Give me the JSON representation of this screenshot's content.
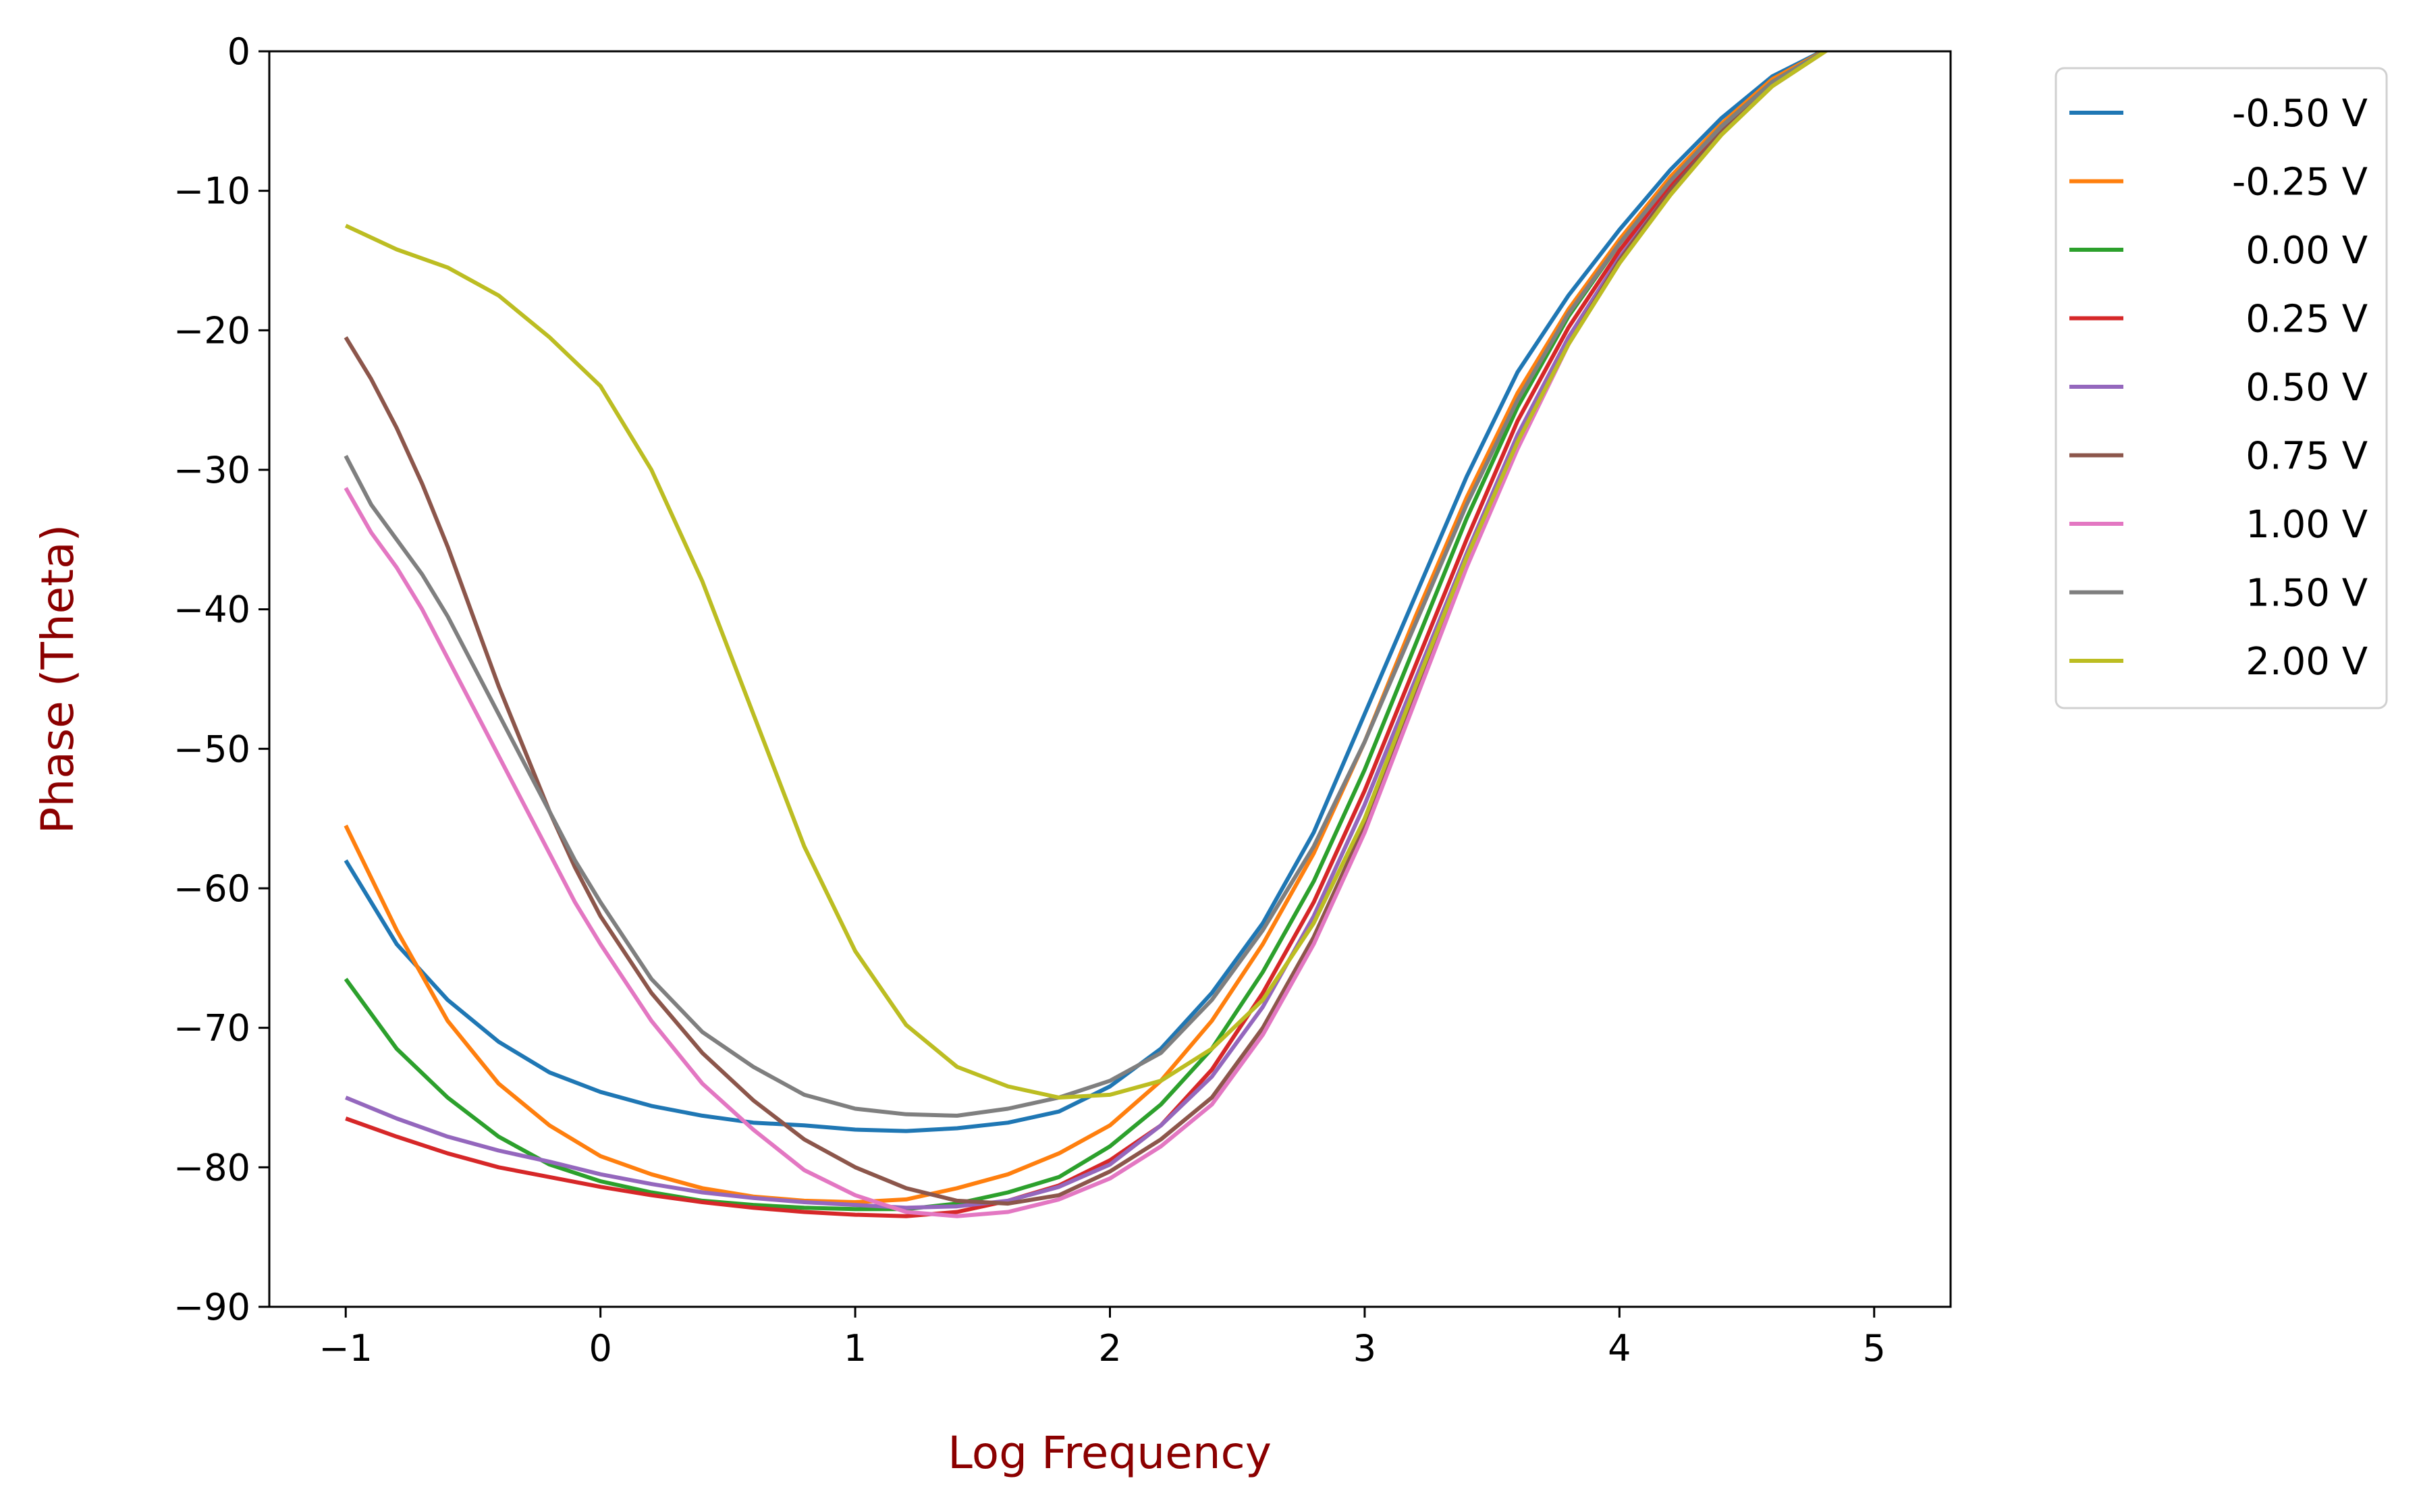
{
  "chart_data": {
    "type": "line",
    "title": "",
    "xlabel": "Log Frequency",
    "ylabel": "Phase (Theta)",
    "axis_label_color": "#8b0000",
    "xlim": [
      -1.3,
      5.3
    ],
    "ylim": [
      -90,
      0
    ],
    "xticks": [
      -1,
      0,
      1,
      2,
      3,
      4,
      5
    ],
    "xtick_labels": [
      "−1",
      "0",
      "1",
      "2",
      "3",
      "4",
      "5"
    ],
    "yticks": [
      0,
      -10,
      -20,
      -30,
      -40,
      -50,
      -60,
      -70,
      -80,
      -90
    ],
    "ytick_labels": [
      "0",
      "−10",
      "−20",
      "−30",
      "−40",
      "−50",
      "−60",
      "−70",
      "−80",
      "−90"
    ],
    "grid": false,
    "legend_position": "outside-upper-right",
    "series": [
      {
        "name": "-0.50 V",
        "color": "#1f77b4",
        "x": [
          -1,
          -0.8,
          -0.6,
          -0.4,
          -0.2,
          0,
          0.2,
          0.4,
          0.6,
          0.8,
          1.0,
          1.2,
          1.4,
          1.6,
          1.8,
          2.0,
          2.2,
          2.4,
          2.6,
          2.8,
          3.0,
          3.2,
          3.4,
          3.6,
          3.8,
          4.0,
          4.2,
          4.4,
          4.6,
          4.85
        ],
        "y": [
          -58,
          -64,
          -68,
          -71,
          -73.2,
          -74.6,
          -75.6,
          -76.3,
          -76.8,
          -77.0,
          -77.3,
          -77.4,
          -77.2,
          -76.8,
          -76.0,
          -74.2,
          -71.5,
          -67.5,
          -62.5,
          -56,
          -47.5,
          -39,
          -30.5,
          -23,
          -17.5,
          -12.8,
          -8.5,
          -4.8,
          -1.8,
          0.5
        ]
      },
      {
        "name": "-0.25 V",
        "color": "#ff7f0e",
        "x": [
          -1,
          -0.8,
          -0.6,
          -0.4,
          -0.2,
          0,
          0.2,
          0.4,
          0.6,
          0.8,
          1.0,
          1.2,
          1.4,
          1.6,
          1.8,
          2.0,
          2.2,
          2.4,
          2.6,
          2.8,
          3.0,
          3.2,
          3.4,
          3.6,
          3.8,
          4.0,
          4.2,
          4.4,
          4.6,
          4.85
        ],
        "y": [
          -55.5,
          -63,
          -69.5,
          -74,
          -77,
          -79.2,
          -80.5,
          -81.5,
          -82.1,
          -82.4,
          -82.5,
          -82.3,
          -81.5,
          -80.5,
          -79,
          -77,
          -73.8,
          -69.5,
          -64,
          -57.5,
          -49.5,
          -40.5,
          -32,
          -24.5,
          -18.5,
          -13.5,
          -9,
          -5.2,
          -2,
          0.5
        ]
      },
      {
        "name": "0.00 V",
        "color": "#2ca02c",
        "x": [
          -1,
          -0.8,
          -0.6,
          -0.4,
          -0.2,
          0,
          0.2,
          0.4,
          0.6,
          0.8,
          1.0,
          1.2,
          1.4,
          1.6,
          1.8,
          2.0,
          2.2,
          2.4,
          2.6,
          2.8,
          3.0,
          3.2,
          3.4,
          3.6,
          3.8,
          4.0,
          4.2,
          4.4,
          4.6,
          4.85
        ],
        "y": [
          -66.5,
          -71.5,
          -75,
          -77.8,
          -79.8,
          -81,
          -81.8,
          -82.4,
          -82.7,
          -82.9,
          -83,
          -83,
          -82.6,
          -81.8,
          -80.7,
          -78.5,
          -75.5,
          -71.5,
          -66,
          -59.5,
          -51.5,
          -42.5,
          -33.5,
          -25.5,
          -19,
          -13.8,
          -9.3,
          -5.4,
          -2.2,
          0.5
        ]
      },
      {
        "name": "0.25 V",
        "color": "#d62728",
        "x": [
          -1,
          -0.8,
          -0.6,
          -0.4,
          -0.2,
          0,
          0.2,
          0.4,
          0.6,
          0.8,
          1.0,
          1.2,
          1.4,
          1.6,
          1.8,
          2.0,
          2.2,
          2.4,
          2.6,
          2.8,
          3.0,
          3.2,
          3.4,
          3.6,
          3.8,
          4.0,
          4.2,
          4.4,
          4.6,
          4.85
        ],
        "y": [
          -76.5,
          -77.8,
          -79,
          -80,
          -80.7,
          -81.4,
          -82,
          -82.5,
          -82.9,
          -83.2,
          -83.4,
          -83.5,
          -83.2,
          -82.4,
          -81.3,
          -79.5,
          -77,
          -73,
          -67.5,
          -61,
          -53,
          -44,
          -35,
          -26.5,
          -19.8,
          -14.3,
          -9.6,
          -5.6,
          -2.3,
          0.5
        ]
      },
      {
        "name": "0.50 V",
        "color": "#9467bd",
        "x": [
          -1,
          -0.8,
          -0.6,
          -0.4,
          -0.2,
          0,
          0.2,
          0.4,
          0.6,
          0.8,
          1.0,
          1.2,
          1.4,
          1.6,
          1.8,
          2.0,
          2.2,
          2.4,
          2.6,
          2.8,
          3.0,
          3.2,
          3.4,
          3.6,
          3.8,
          4.0,
          4.2,
          4.4,
          4.6,
          4.85
        ],
        "y": [
          -75,
          -76.5,
          -77.8,
          -78.8,
          -79.6,
          -80.5,
          -81.2,
          -81.8,
          -82.2,
          -82.5,
          -82.7,
          -82.9,
          -82.8,
          -82.4,
          -81.4,
          -79.8,
          -77,
          -73.5,
          -68.5,
          -62,
          -54,
          -45,
          -36,
          -27.5,
          -20.5,
          -14.8,
          -10,
          -5.8,
          -2.4,
          0.5
        ]
      },
      {
        "name": "0.75 V",
        "color": "#8c564b",
        "x": [
          -1,
          -0.9,
          -0.8,
          -0.7,
          -0.6,
          -0.5,
          -0.4,
          -0.3,
          -0.2,
          -0.1,
          0,
          0.2,
          0.4,
          0.6,
          0.8,
          1.0,
          1.2,
          1.4,
          1.6,
          1.8,
          2.0,
          2.2,
          2.4,
          2.6,
          2.8,
          3.0,
          3.2,
          3.4,
          3.6,
          3.8,
          4.0,
          4.2,
          4.4,
          4.6,
          4.85
        ],
        "y": [
          -20.5,
          -23.5,
          -27,
          -31,
          -35.5,
          -40.5,
          -45.5,
          -50,
          -54.5,
          -58.5,
          -62,
          -67.5,
          -71.8,
          -75.2,
          -78,
          -80,
          -81.5,
          -82.4,
          -82.6,
          -82,
          -80.3,
          -78,
          -75,
          -70,
          -63.5,
          -55.5,
          -46,
          -36.5,
          -28,
          -21,
          -15,
          -10,
          -5.8,
          -2.4,
          0.5
        ]
      },
      {
        "name": "1.00 V",
        "color": "#e377c2",
        "x": [
          -1,
          -0.9,
          -0.8,
          -0.7,
          -0.6,
          -0.5,
          -0.4,
          -0.3,
          -0.2,
          -0.1,
          0,
          0.2,
          0.4,
          0.6,
          0.8,
          1.0,
          1.2,
          1.4,
          1.6,
          1.8,
          2.0,
          2.2,
          2.4,
          2.6,
          2.8,
          3.0,
          3.2,
          3.4,
          3.6,
          3.8,
          4.0,
          4.2,
          4.4,
          4.6,
          4.85
        ],
        "y": [
          -31.3,
          -34.5,
          -37,
          -40,
          -43.5,
          -47,
          -50.5,
          -54,
          -57.5,
          -61,
          -64,
          -69.5,
          -74,
          -77.3,
          -80.2,
          -82,
          -83.2,
          -83.5,
          -83.2,
          -82.3,
          -80.8,
          -78.5,
          -75.5,
          -70.5,
          -64,
          -56,
          -46.5,
          -37,
          -28.5,
          -21,
          -15.2,
          -10.3,
          -6,
          -2.5,
          0.5
        ]
      },
      {
        "name": "1.50 V",
        "color": "#7f7f7f",
        "x": [
          -1,
          -0.9,
          -0.8,
          -0.7,
          -0.6,
          -0.5,
          -0.4,
          -0.3,
          -0.2,
          -0.1,
          0,
          0.2,
          0.4,
          0.6,
          0.8,
          1.0,
          1.2,
          1.4,
          1.6,
          1.8,
          2.0,
          2.2,
          2.4,
          2.6,
          2.8,
          3.0,
          3.2,
          3.4,
          3.6,
          3.8,
          4.0,
          4.2,
          4.4,
          4.6,
          4.85
        ],
        "y": [
          -29,
          -32.5,
          -35,
          -37.5,
          -40.5,
          -44,
          -47.5,
          -51,
          -54.5,
          -58,
          -61,
          -66.5,
          -70.3,
          -72.8,
          -74.8,
          -75.8,
          -76.2,
          -76.3,
          -75.8,
          -75,
          -73.8,
          -71.8,
          -68,
          -63,
          -57,
          -49.5,
          -41,
          -32.5,
          -25,
          -18.8,
          -13.8,
          -9.3,
          -5.4,
          -2.2,
          0.5
        ]
      },
      {
        "name": "2.00 V",
        "color": "#bcbd22",
        "x": [
          -1,
          -0.8,
          -0.6,
          -0.4,
          -0.2,
          0,
          0.2,
          0.4,
          0.6,
          0.8,
          1.0,
          1.2,
          1.4,
          1.6,
          1.8,
          2.0,
          2.2,
          2.4,
          2.6,
          2.8,
          3.0,
          3.2,
          3.4,
          3.6,
          3.8,
          4.0,
          4.2,
          4.4,
          4.6,
          4.85
        ],
        "y": [
          -12.5,
          -14.2,
          -15.5,
          -17.5,
          -20.5,
          -24,
          -30,
          -38,
          -47.5,
          -57,
          -64.5,
          -69.8,
          -72.8,
          -74.2,
          -75,
          -74.8,
          -73.8,
          -71.5,
          -68,
          -62.5,
          -55,
          -45.5,
          -36.3,
          -28,
          -21,
          -15.2,
          -10.3,
          -6,
          -2.5,
          0.5
        ]
      }
    ]
  }
}
